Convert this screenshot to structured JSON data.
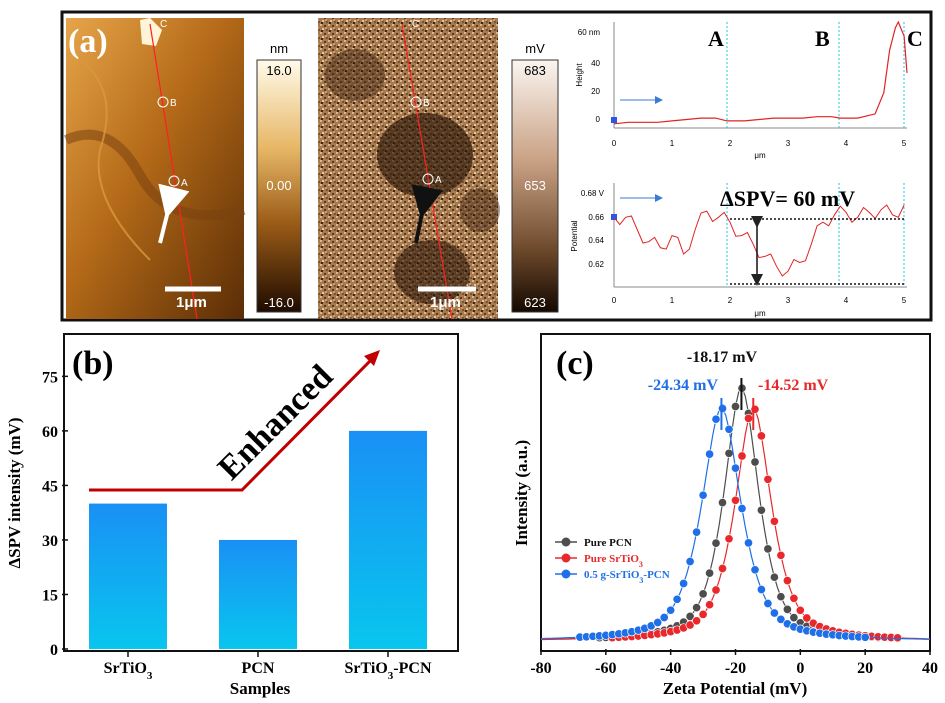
{
  "panel_a": {
    "label": "(a)",
    "topo_map": {
      "scale_bar": "1μm",
      "points": [
        "C",
        "B",
        "A"
      ]
    },
    "topo_colorbar": {
      "unit": "nm",
      "ticks": [
        "16.0",
        "0.00",
        "-16.0"
      ]
    },
    "kpfm_map": {
      "scale_bar": "1μm",
      "points": [
        "C",
        "B",
        "A"
      ]
    },
    "kpfm_colorbar": {
      "unit": "mV",
      "ticks": [
        "683",
        "653",
        "623"
      ]
    },
    "region_labels": [
      "A",
      "B",
      "C"
    ],
    "height_profile": {
      "ylabel": "Height",
      "xlabel": "μm",
      "y_tick_labels": [
        "60 nm",
        "40",
        "20",
        "0"
      ],
      "x_tick_labels": [
        "0",
        "1",
        "2",
        "3",
        "4",
        "5"
      ]
    },
    "potential_profile": {
      "ylabel": "Potential",
      "xlabel": "μm",
      "y_tick_labels": [
        "0.68 V",
        "0.66",
        "0.64",
        "0.62"
      ],
      "x_tick_labels": [
        "0",
        "1",
        "2",
        "3",
        "4",
        "5"
      ],
      "annotation": "ΔSPV= 60 mV"
    }
  },
  "panel_b": {
    "label": "(b)",
    "annotation": "Enhanced"
  },
  "panel_c": {
    "label": "(c)"
  },
  "chart_data": [
    {
      "type": "line",
      "x": [
        0,
        0.25,
        0.5,
        0.75,
        1,
        1.25,
        1.5,
        1.75,
        1.95,
        2.25,
        2.5,
        2.75,
        3,
        3.25,
        3.5,
        3.75,
        3.9,
        4.2,
        4.5,
        4.65,
        4.75,
        4.85,
        4.9,
        5.0,
        5.05
      ],
      "series": [
        {
          "values": [
            -2,
            -1,
            -1,
            -1,
            0,
            1,
            2,
            2,
            0,
            0,
            1,
            2,
            2,
            2,
            3,
            3,
            2,
            2,
            5,
            20,
            50,
            66,
            70,
            60,
            34
          ]
        }
      ],
      "xlabel": "μm",
      "ylabel": "Height",
      "xlim": [
        0,
        5.05
      ],
      "ylim": [
        -5,
        70
      ]
    },
    {
      "type": "line",
      "x": [
        0,
        0.2,
        0.4,
        0.6,
        0.8,
        1.0,
        1.2,
        1.4,
        1.6,
        1.8,
        2.0,
        2.2,
        2.4,
        2.6,
        2.8,
        3.0,
        3.2,
        3.4,
        3.6,
        3.8,
        4.0,
        4.2,
        4.4,
        4.6,
        4.8,
        5.0
      ],
      "series": [
        {
          "values": [
            0.662,
            0.662,
            0.652,
            0.642,
            0.637,
            0.647,
            0.632,
            0.652,
            0.667,
            0.662,
            0.658,
            0.647,
            0.64,
            0.63,
            0.622,
            0.618,
            0.625,
            0.64,
            0.658,
            0.664,
            0.666,
            0.662,
            0.666,
            0.668,
            0.664,
            0.672
          ]
        }
      ],
      "xlabel": "μm",
      "ylabel": "Potential",
      "xlim": [
        0,
        5.05
      ],
      "ylim": [
        0.605,
        0.69
      ]
    },
    {
      "type": "bar",
      "categories": [
        "SrTiO3",
        "PCN",
        "SrTiO3-PCN"
      ],
      "values": [
        40,
        30,
        60
      ],
      "xlabel": "Samples",
      "ylabel": "ΔSPV intensity (mV)",
      "ylim": [
        0,
        85
      ],
      "yticks": [
        0,
        15,
        30,
        45,
        60,
        75
      ],
      "color": "#1e9bf0"
    },
    {
      "type": "line",
      "xlabel": "Zeta Potential (mV)",
      "ylabel": "Intensity (a.u.)",
      "xlim": [
        -80,
        40
      ],
      "xticks": [
        -80,
        -60,
        -40,
        -20,
        0,
        20,
        40
      ],
      "legend_position": "left",
      "series": [
        {
          "name": "Pure PCN",
          "color": "#4d4d4d",
          "peak": -18.17,
          "label": "-18.17 mV"
        },
        {
          "name": "Pure SrTiO3",
          "color": "#e8282b",
          "peak": -14.52,
          "label": "-14.52 mV"
        },
        {
          "name": "0.5 g-SrTiO3-PCN",
          "color": "#1f6fe8",
          "peak": -24.34,
          "label": "-24.34 mV"
        }
      ]
    }
  ]
}
